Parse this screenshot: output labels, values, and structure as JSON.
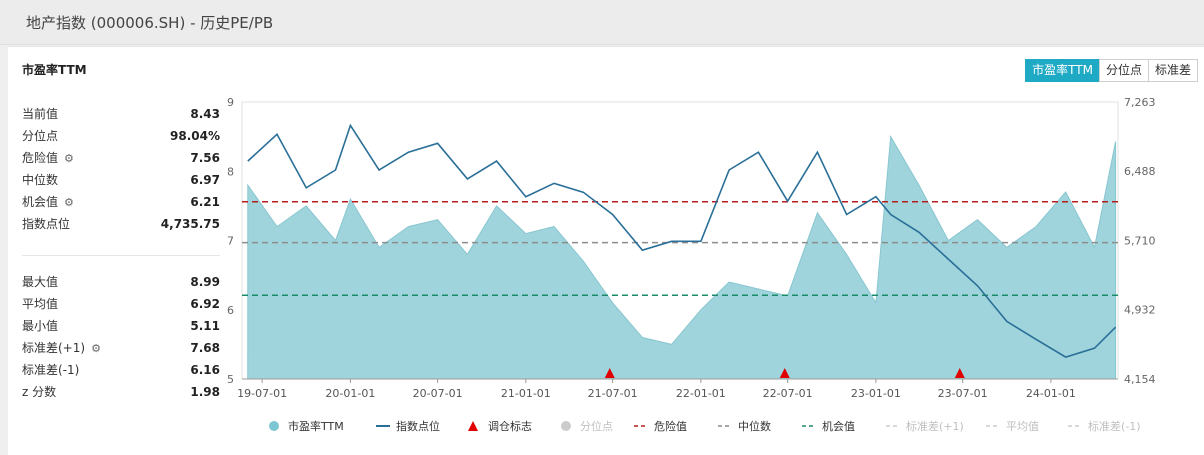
{
  "header": {
    "title": "地产指数 (000006.SH) - 历史PE/PB"
  },
  "panel": {
    "title": "市盈率TTM",
    "buttons": [
      {
        "label": "市盈率TTM",
        "active": true
      },
      {
        "label": "分位点",
        "active": false
      },
      {
        "label": "标准差",
        "active": false
      }
    ]
  },
  "stats_top": [
    {
      "label": "当前值",
      "value": "8.43",
      "gear": false
    },
    {
      "label": "分位点",
      "value": "98.04%",
      "gear": false
    },
    {
      "label": "危险值",
      "value": "7.56",
      "gear": true
    },
    {
      "label": "中位数",
      "value": "6.97",
      "gear": false
    },
    {
      "label": "机会值",
      "value": "6.21",
      "gear": true
    },
    {
      "label": "指数点位",
      "value": "4,735.75",
      "gear": false
    }
  ],
  "stats_bottom": [
    {
      "label": "最大值",
      "value": "8.99",
      "gear": false
    },
    {
      "label": "平均值",
      "value": "6.92",
      "gear": false
    },
    {
      "label": "最小值",
      "value": "5.11",
      "gear": false
    },
    {
      "label": "标准差(+1)",
      "value": "7.68",
      "gear": true
    },
    {
      "label": "标准差(-1)",
      "value": "6.16",
      "gear": false
    },
    {
      "label": "z 分数",
      "value": "1.98",
      "gear": false
    }
  ],
  "chart_data": {
    "type": "area",
    "x_dates": [
      "2019-06-01",
      "2019-08-01",
      "2019-10-01",
      "2019-12-01",
      "2020-01-01",
      "2020-03-01",
      "2020-05-01",
      "2020-07-01",
      "2020-09-01",
      "2020-11-01",
      "2021-01-01",
      "2021-03-01",
      "2021-05-01",
      "2021-07-01",
      "2021-09-01",
      "2021-11-01",
      "2022-01-01",
      "2022-03-01",
      "2022-05-01",
      "2022-07-01",
      "2022-09-01",
      "2022-11-01",
      "2023-01-01",
      "2023-02-01",
      "2023-04-01",
      "2023-06-01",
      "2023-08-01",
      "2023-10-01",
      "2023-12-01",
      "2024-02-01",
      "2024-04-01",
      "2024-05-15"
    ],
    "xlim": [
      "2019-05-20",
      "2024-05-20"
    ],
    "x_ticks": [
      "19-07-01",
      "20-01-01",
      "20-07-01",
      "21-01-01",
      "21-07-01",
      "22-01-01",
      "22-07-01",
      "23-01-01",
      "23-07-01",
      "24-01-01"
    ],
    "x_tick_dates": [
      "2019-07-01",
      "2020-01-01",
      "2020-07-01",
      "2021-01-01",
      "2021-07-01",
      "2022-01-01",
      "2022-07-01",
      "2023-01-01",
      "2023-07-01",
      "2024-01-01"
    ],
    "series": [
      {
        "name": "市盈率TTM",
        "color": "#9fd4dc",
        "values": [
          7.8,
          7.2,
          7.5,
          7.0,
          7.6,
          6.9,
          7.2,
          7.3,
          6.8,
          7.5,
          7.1,
          7.2,
          6.7,
          6.1,
          5.6,
          5.5,
          6.0,
          6.4,
          6.3,
          6.2,
          7.4,
          6.8,
          6.1,
          8.5,
          7.8,
          7.0,
          7.3,
          6.9,
          7.2,
          7.7,
          6.9,
          8.43
        ]
      },
      {
        "name": "指数点位",
        "color": "#2a6f97",
        "values": [
          6600,
          6900,
          6300,
          6500,
          7000,
          6500,
          6700,
          6800,
          6400,
          6600,
          6200,
          6350,
          6250,
          6000,
          5600,
          5700,
          5700,
          6500,
          6700,
          6150,
          6700,
          6000,
          6200,
          6000,
          5800,
          5500,
          5200,
          4800,
          4600,
          4400,
          4500,
          4735.75
        ]
      }
    ],
    "pe_ylim": [
      5,
      9
    ],
    "pe_ticks": [
      "5",
      "6",
      "7",
      "8",
      "9"
    ],
    "pe_tick_values": [
      5,
      6,
      7,
      8,
      9
    ],
    "index_ylim": [
      4154,
      7263
    ],
    "index_ticks": [
      "4,154",
      "4,932",
      "5,710",
      "6,488",
      "7,263"
    ],
    "index_tick_values": [
      4154,
      4932,
      5710,
      6488,
      7263
    ],
    "reference_lines": [
      {
        "name": "危险值",
        "value": 7.56,
        "color": "#b71c1c"
      },
      {
        "name": "中位数",
        "value": 6.97,
        "color": "#8c8c8c"
      },
      {
        "name": "机会值",
        "value": 6.21,
        "color": "#1b8a6b"
      }
    ],
    "markers": {
      "name": "调仓标志",
      "color": "#e00000",
      "dates": [
        "2021-06-25",
        "2022-06-25",
        "2023-06-25"
      ]
    },
    "legend": [
      {
        "label": "市盈率TTM",
        "kind": "circle",
        "color": "#7cc7d3",
        "muted": false
      },
      {
        "label": "指数点位",
        "kind": "line",
        "color": "#2a6f97",
        "muted": false
      },
      {
        "label": "调仓标志",
        "kind": "triangle",
        "color": "#e00000",
        "muted": false
      },
      {
        "label": "分位点",
        "kind": "circle",
        "color": "#cccccc",
        "muted": true
      },
      {
        "label": "危险值",
        "kind": "dash",
        "color": "#b71c1c",
        "muted": false
      },
      {
        "label": "中位数",
        "kind": "dash",
        "color": "#8c8c8c",
        "muted": false
      },
      {
        "label": "机会值",
        "kind": "dash",
        "color": "#1b8a6b",
        "muted": false
      },
      {
        "label": "标准差(+1)",
        "kind": "dash",
        "color": "#cccccc",
        "muted": true
      },
      {
        "label": "平均值",
        "kind": "dash",
        "color": "#cccccc",
        "muted": true
      },
      {
        "label": "标准差(-1)",
        "kind": "dash",
        "color": "#cccccc",
        "muted": true
      }
    ],
    "legend_position": "bottom",
    "grid": false
  }
}
